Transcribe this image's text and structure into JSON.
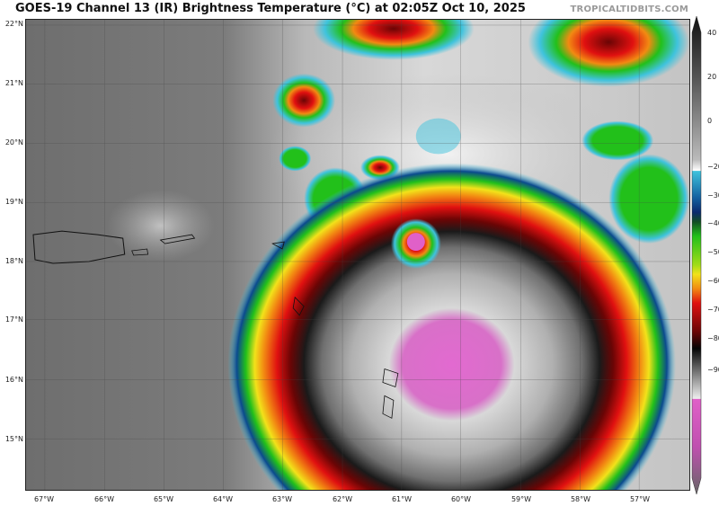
{
  "title": "GOES-19 Channel 13 (IR) Brightness Temperature (°C) at 02:05Z Oct 10, 2025",
  "watermark": "TROPICALTIDBITS.COM",
  "latitude_labels": [
    "22°N",
    "21°N",
    "20°N",
    "19°N",
    "18°N",
    "17°N",
    "16°N",
    "15°N"
  ],
  "longitude_labels": [
    "67°W",
    "66°W",
    "65°W",
    "64°W",
    "63°W",
    "62°W",
    "61°W",
    "60°W",
    "59°W",
    "58°W",
    "57°W"
  ],
  "colorbar": {
    "ticks": [
      "40",
      "20",
      "0",
      "−20",
      "−30",
      "−40",
      "−50",
      "−60",
      "−70",
      "−80",
      "−90"
    ],
    "range": [
      -90,
      40
    ],
    "colors": {
      "warm_black": "#111111",
      "light_gray": "#e8e8e8",
      "cyan": "#3fc3dd",
      "dark_blue": "#0b2a6e",
      "green": "#22c01a",
      "yellow": "#f2e21a",
      "orange": "#f28a12",
      "red": "#e01010",
      "dark_red": "#6a0505",
      "black": "#050505",
      "pink": "#e060c8"
    }
  }
}
